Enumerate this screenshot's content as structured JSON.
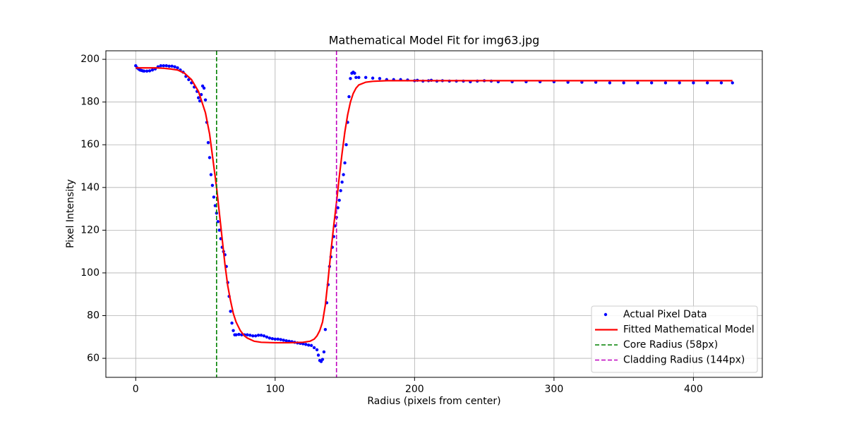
{
  "chart_data": {
    "type": "line",
    "title": "Mathematical Model Fit for img63.jpg",
    "x_label": "Radius (pixels from center)",
    "y_label": "Pixel Intensity",
    "xlim": [
      -21.4,
      449.4
    ],
    "ylim": [
      51.1,
      204
    ],
    "xticks": [
      0,
      100,
      200,
      300,
      400
    ],
    "yticks": [
      60,
      80,
      100,
      120,
      140,
      160,
      180,
      200
    ],
    "grid": true,
    "legend": "lower right",
    "series": [
      {
        "name": "Actual Pixel Data",
        "color": "#0000ff",
        "style": "markers",
        "x": [
          0,
          1,
          2,
          3,
          4,
          5,
          6,
          8,
          10,
          12,
          14,
          16,
          18,
          20,
          22,
          24,
          26,
          28,
          30,
          32,
          34,
          36,
          38,
          40,
          42,
          44,
          45,
          46,
          47,
          48,
          49,
          50,
          51,
          52,
          53,
          54,
          55,
          56,
          57,
          58,
          59,
          60,
          61,
          62,
          63,
          64,
          65,
          66,
          67,
          68,
          69,
          70,
          71,
          72,
          74,
          76,
          78,
          80,
          82,
          84,
          86,
          88,
          90,
          92,
          94,
          96,
          98,
          100,
          102,
          104,
          106,
          108,
          110,
          112,
          114,
          116,
          118,
          120,
          122,
          124,
          126,
          128,
          130,
          131,
          132,
          133,
          134,
          135,
          136,
          137,
          138,
          139,
          140,
          141,
          142,
          143,
          144,
          145,
          146,
          147,
          148,
          149,
          150,
          151,
          152,
          153,
          154,
          155,
          156,
          157,
          158,
          160,
          165,
          170,
          175,
          180,
          185,
          190,
          195,
          200,
          202,
          206,
          210,
          212,
          216,
          220,
          225,
          230,
          235,
          240,
          245,
          250,
          255,
          260,
          270,
          280,
          290,
          300,
          310,
          320,
          330,
          340,
          350,
          360,
          370,
          380,
          390,
          400,
          410,
          420,
          428
        ],
        "values": [
          197,
          196,
          195.5,
          195,
          194.8,
          194.6,
          194.5,
          194.5,
          194.6,
          195,
          195.5,
          196.5,
          197,
          197,
          197,
          196.8,
          196.8,
          196.5,
          196,
          195,
          194,
          192,
          190.5,
          189,
          187,
          185,
          182,
          180.5,
          183.5,
          187.5,
          186.5,
          181,
          170.5,
          161,
          154,
          146,
          141,
          135.5,
          131.5,
          128,
          124,
          120,
          116,
          112,
          110,
          108.5,
          103,
          95.5,
          89,
          82,
          76.5,
          73,
          71,
          71,
          71.2,
          71,
          71,
          71,
          70.8,
          70.5,
          70.5,
          70.8,
          70.8,
          70.5,
          70,
          69.5,
          69.2,
          69,
          69,
          68.8,
          68.5,
          68.2,
          68,
          67.8,
          67.5,
          67.2,
          67,
          66.8,
          66.5,
          66.2,
          66,
          65,
          64,
          61.5,
          59,
          58.5,
          59.5,
          63,
          73.5,
          86,
          94.5,
          103,
          107.5,
          112,
          117,
          122,
          126,
          130.5,
          134,
          138.5,
          142.5,
          146,
          151.5,
          160,
          170.5,
          182.5,
          191,
          193.5,
          194,
          193.5,
          191.5,
          191.5,
          191.5,
          191.2,
          191,
          190.5,
          190.5,
          190.5,
          190.3,
          190,
          190.2,
          189.8,
          190,
          190.2,
          189.8,
          190,
          189.8,
          189.8,
          189.8,
          189.5,
          189.8,
          190,
          189.8,
          189.5,
          189.5,
          189.5,
          189.5,
          189.5,
          189.3,
          189.3,
          189.3,
          189,
          189,
          189,
          189,
          189,
          189,
          189,
          189,
          189,
          189
        ]
      },
      {
        "name": "Fitted Mathematical Model",
        "color": "#ff0000",
        "style": "solid",
        "x": [
          0,
          5,
          10,
          15,
          20,
          25,
          30,
          35,
          40,
          45,
          50,
          53,
          56,
          58,
          60,
          62,
          64,
          66,
          68,
          70,
          72,
          75,
          78,
          80,
          85,
          90,
          100,
          110,
          120,
          125,
          128,
          130,
          132,
          134,
          136,
          138,
          140,
          142,
          144,
          146,
          148,
          150,
          152,
          154,
          156,
          158,
          160,
          165,
          170,
          180,
          200,
          250,
          300,
          350,
          400,
          428
        ],
        "values": [
          196,
          196,
          196,
          196,
          195.8,
          195.5,
          195,
          193.5,
          190.5,
          185,
          175,
          165,
          150,
          140,
          128,
          116,
          104,
          94,
          87,
          81,
          77,
          73,
          70.5,
          69.5,
          68,
          67.5,
          67.3,
          67.3,
          67.5,
          68,
          69,
          70.5,
          73,
          77,
          85,
          97,
          110,
          122,
          133,
          145,
          156,
          166,
          174,
          180,
          184,
          186.5,
          188,
          189.3,
          189.7,
          190,
          190,
          190,
          190,
          190,
          190,
          190
        ]
      },
      {
        "name": "Core Radius (58px)",
        "color": "#008000",
        "style": "vline",
        "x": [
          58
        ]
      },
      {
        "name": "Cladding Radius (144px)",
        "color": "#bf00bf",
        "style": "vline",
        "x": [
          144
        ]
      }
    ]
  }
}
